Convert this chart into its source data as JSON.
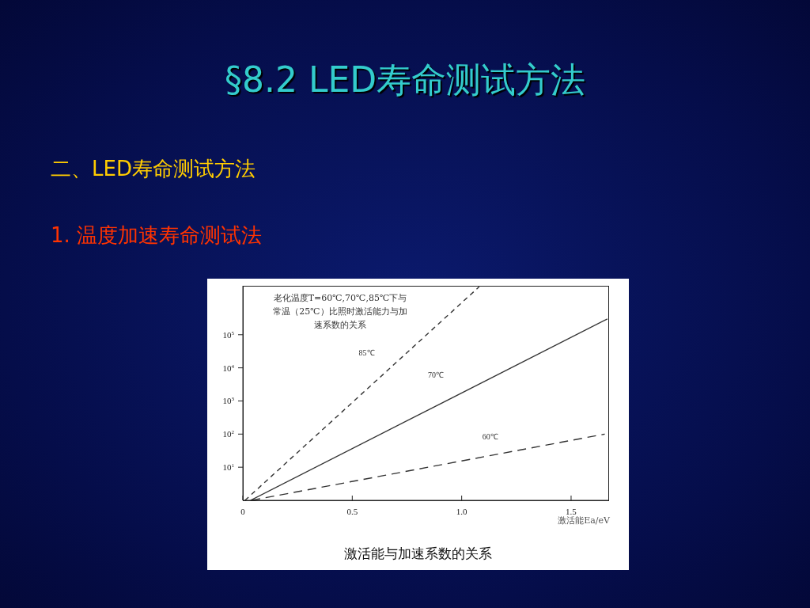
{
  "chart_data": {
    "type": "line",
    "title": "§8.2 LED寿命测试方法",
    "subtitle": "二、LED寿命测试方法",
    "xlabel": "激活能Ea/eV",
    "annotations": [
      "1. 温度加速寿命测试法",
      "老化温度T=60℃,70℃,85℃下与常温（25℃）比照时激活能力与加速系数的关系",
      "激活能与加速系数的关系"
    ],
    "series": [
      {
        "name": "85℃",
        "color": "#333333",
        "line_style": "dashed",
        "x": [
          0.01,
          1.08
        ],
        "values": [
          1,
          2800000
        ]
      },
      {
        "name": "70℃",
        "color": "#333333",
        "line_style": "solid",
        "x": [
          0.035,
          1.666
        ],
        "values": [
          1,
          300000
        ]
      },
      {
        "name": "60℃",
        "color": "#333333",
        "line_style": "longdash",
        "x": [
          0.04,
          1.654
        ],
        "values": [
          1,
          100
        ]
      }
    ],
    "log": "y",
    "xlim": [
      0,
      1.67
    ],
    "ylim": [
      1,
      3000000
    ],
    "xticks": [
      0,
      0.5,
      {
        "value": 1,
        "label": "1.0"
      },
      1.5
    ],
    "yticks": [
      {
        "value": 10,
        "label": "10$^{1}$"
      },
      {
        "value": 100,
        "label": "10$^{2}$"
      },
      {
        "value": 1000,
        "label": "10$^{3}$"
      },
      {
        "value": 10000,
        "label": "10$^{4}$"
      },
      {
        "value": 100000,
        "label": "10$^{5}$"
      }
    ],
    "grid": false,
    "legend": false,
    "marker": "none"
  }
}
